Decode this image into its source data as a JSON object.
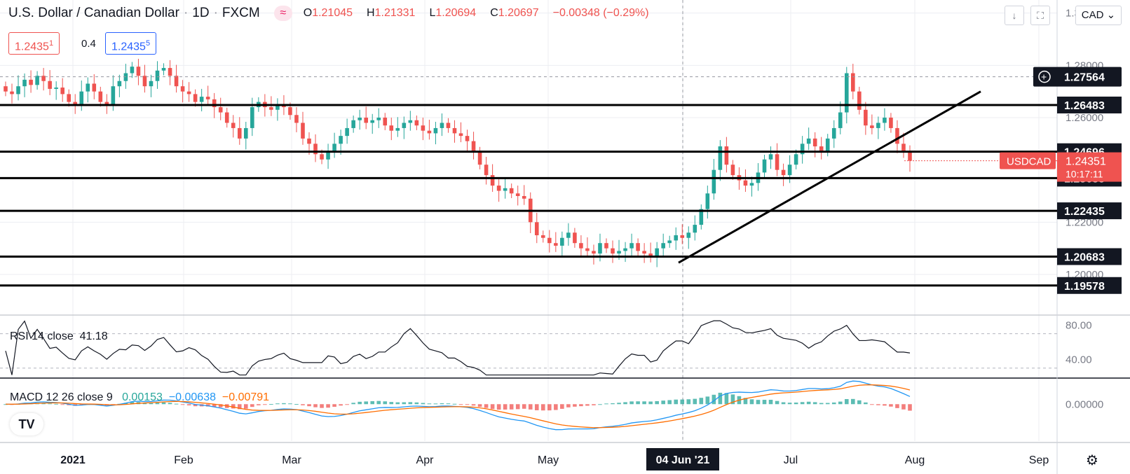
{
  "header": {
    "symbol": "U.S. Dollar / Canadian Dollar",
    "interval": "1D",
    "exchange": "FXCM",
    "o_label": "O",
    "o": "1.21045",
    "h_label": "H",
    "h": "1.21331",
    "l_label": "L",
    "l": "1.20694",
    "c_label": "C",
    "c": "1.20697",
    "change": "−0.00348 (−0.29%)",
    "bid": "1.2435",
    "bid_sup": "1",
    "spread": "0.4",
    "ask": "1.2435",
    "ask_sup": "5",
    "currency": "CAD"
  },
  "price_axis": [
    "1.30000",
    "1.28000",
    "1.26000",
    "1.22000",
    "1.20000"
  ],
  "horizontal_levels": [
    {
      "label": "1.26483",
      "value": 1.26483
    },
    {
      "label": "1.24696",
      "value": 1.24696
    },
    {
      "label": "1.23685",
      "value": 1.23685
    },
    {
      "label": "1.22435",
      "value": 1.22435
    },
    {
      "label": "1.20683",
      "value": 1.20683
    },
    {
      "label": "1.19578",
      "value": 1.19578
    }
  ],
  "crosshair": {
    "label": "1.27564",
    "value": 1.27564
  },
  "last_price": {
    "symbol": "USDCAD",
    "price": "1.24351",
    "countdown": "10:17:11",
    "value": 1.24351
  },
  "time_axis": [
    "2021",
    "Feb",
    "Mar",
    "Apr",
    "May",
    "04 Jun '21",
    "Jul",
    "Aug",
    "Sep"
  ],
  "rsi": {
    "label": "RSI 14 close",
    "value": "41.18",
    "ticks": [
      "80.00",
      "40.00"
    ]
  },
  "macd": {
    "label": "MACD 12 26 close 9",
    "hist": "0.00153",
    "macd": "−0.00638",
    "signal": "−0.00791",
    "ticks": [
      "0.00000"
    ]
  },
  "colors": {
    "up": "#26a69a",
    "down": "#ef5350",
    "macd_line": "#2196f3",
    "signal_line": "#ff6d00",
    "hist_up": "#26a69a",
    "hist_down": "#ef5350"
  },
  "chart_data": {
    "type": "candlestick",
    "title": "U.S. Dollar / Canadian Dollar · 1D · FXCM",
    "ylim": [
      1.185,
      1.305
    ],
    "trendline": {
      "start": [
        "2021-06-01",
        1.2045
      ],
      "end": [
        "2021-08-17",
        1.27
      ]
    },
    "close_series": [
      1.27,
      1.269,
      1.272,
      1.2745,
      1.2725,
      1.276,
      1.274,
      1.271,
      1.2715,
      1.269,
      1.266,
      1.265,
      1.27,
      1.273,
      1.27,
      1.266,
      1.265,
      1.272,
      1.274,
      1.277,
      1.2795,
      1.276,
      1.272,
      1.274,
      1.278,
      1.279,
      1.276,
      1.272,
      1.27,
      1.269,
      1.266,
      1.268,
      1.267,
      1.264,
      1.262,
      1.258,
      1.256,
      1.252,
      1.256,
      1.264,
      1.266,
      1.264,
      1.263,
      1.265,
      1.264,
      1.261,
      1.258,
      1.252,
      1.25,
      1.246,
      1.244,
      1.247,
      1.25,
      1.253,
      1.256,
      1.259,
      1.26,
      1.258,
      1.259,
      1.26,
      1.257,
      1.255,
      1.256,
      1.258,
      1.259,
      1.257,
      1.255,
      1.254,
      1.256,
      1.258,
      1.256,
      1.254,
      1.253,
      1.251,
      1.247,
      1.242,
      1.238,
      1.234,
      1.232,
      1.233,
      1.231,
      1.23,
      1.229,
      1.22,
      1.215,
      1.214,
      1.212,
      1.211,
      1.214,
      1.216,
      1.212,
      1.21,
      1.209,
      1.208,
      1.212,
      1.21,
      1.208,
      1.209,
      1.21,
      1.212,
      1.209,
      1.208,
      1.207,
      1.21,
      1.212,
      1.213,
      1.215,
      1.214,
      1.216,
      1.219,
      1.225,
      1.231,
      1.24,
      1.249,
      1.242,
      1.238,
      1.236,
      1.234,
      1.235,
      1.239,
      1.244,
      1.246,
      1.24,
      1.238,
      1.242,
      1.246,
      1.25,
      1.252,
      1.249,
      1.247,
      1.252,
      1.256,
      1.262,
      1.277,
      1.27,
      1.263,
      1.257,
      1.256,
      1.258,
      1.26,
      1.256,
      1.25,
      1.247,
      1.2435
    ],
    "rsi_range": [
      20,
      90
    ],
    "macd_range": [
      -0.016,
      0.011
    ]
  }
}
